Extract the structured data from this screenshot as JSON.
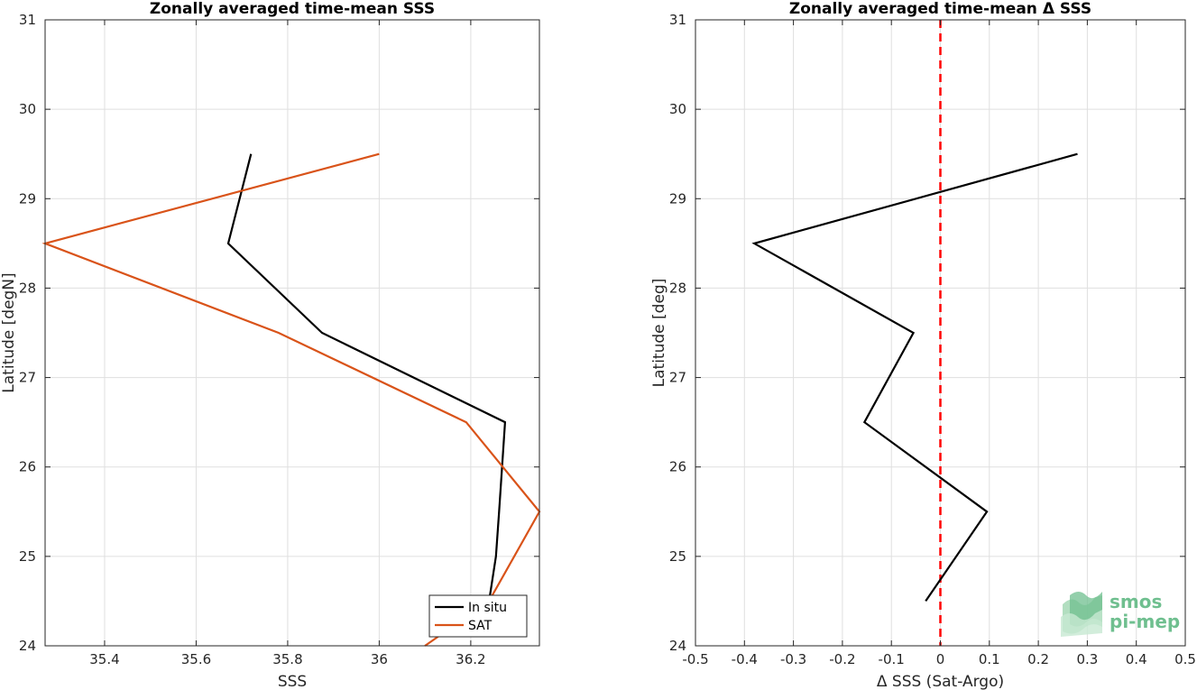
{
  "logo": {
    "line1": "smos",
    "line2": "pi-mep",
    "color": "#6fbf8f"
  },
  "chart_data": [
    {
      "type": "line",
      "title": "Zonally averaged time-mean SSS",
      "xlabel": "SSS",
      "ylabel": "Latitude [degN]",
      "xlim": [
        35.27,
        36.35
      ],
      "ylim": [
        24,
        31
      ],
      "xticks": [
        35.4,
        35.6,
        35.8,
        36,
        36.2
      ],
      "xtick_labels": [
        "35.4",
        "35.6",
        "35.8",
        "36",
        "36.2"
      ],
      "yticks": [
        24,
        25,
        26,
        27,
        28,
        29,
        30,
        31
      ],
      "ytick_labels": [
        "24",
        "25",
        "26",
        "27",
        "28",
        "29",
        "30",
        "31"
      ],
      "grid": true,
      "legend_position": "bottom-right",
      "series": [
        {
          "name": "In situ",
          "color": "#000000",
          "x": [
            36.24,
            36.255,
            36.262,
            36.275,
            35.875,
            35.67,
            35.72
          ],
          "y": [
            24.5,
            25.0,
            25.5,
            26.5,
            27.5,
            28.5,
            29.5
          ]
        },
        {
          "name": "SAT",
          "color": "#d95319",
          "x": [
            36.1,
            36.24,
            36.35,
            36.19,
            35.78,
            35.27,
            36.0
          ],
          "y": [
            24.0,
            24.5,
            25.5,
            26.5,
            27.5,
            28.5,
            29.5
          ]
        }
      ]
    },
    {
      "type": "line",
      "title": "Zonally averaged time-mean Δ SSS",
      "xlabel": "Δ SSS (Sat-Argo)",
      "ylabel": "Latitude [deg]",
      "xlim": [
        -0.5,
        0.5
      ],
      "ylim": [
        24,
        31
      ],
      "xticks": [
        -0.5,
        -0.4,
        -0.3,
        -0.2,
        -0.1,
        0,
        0.1,
        0.2,
        0.3,
        0.4,
        0.5
      ],
      "xtick_labels": [
        "-0.5",
        "-0.4",
        "-0.3",
        "-0.2",
        "-0.1",
        "0",
        "0.1",
        "0.2",
        "0.3",
        "0.4",
        "0.5"
      ],
      "yticks": [
        24,
        25,
        26,
        27,
        28,
        29,
        30,
        31
      ],
      "ytick_labels": [
        "24",
        "25",
        "26",
        "27",
        "28",
        "29",
        "30",
        "31"
      ],
      "grid": true,
      "reference_line": {
        "x": 0,
        "color": "#ff0000",
        "style": "dashed"
      },
      "series": [
        {
          "color": "#000000",
          "x": [
            -0.03,
            0.095,
            -0.155,
            -0.055,
            -0.38,
            0.28
          ],
          "y": [
            24.5,
            25.5,
            26.5,
            27.5,
            28.5,
            29.5
          ]
        }
      ]
    }
  ]
}
